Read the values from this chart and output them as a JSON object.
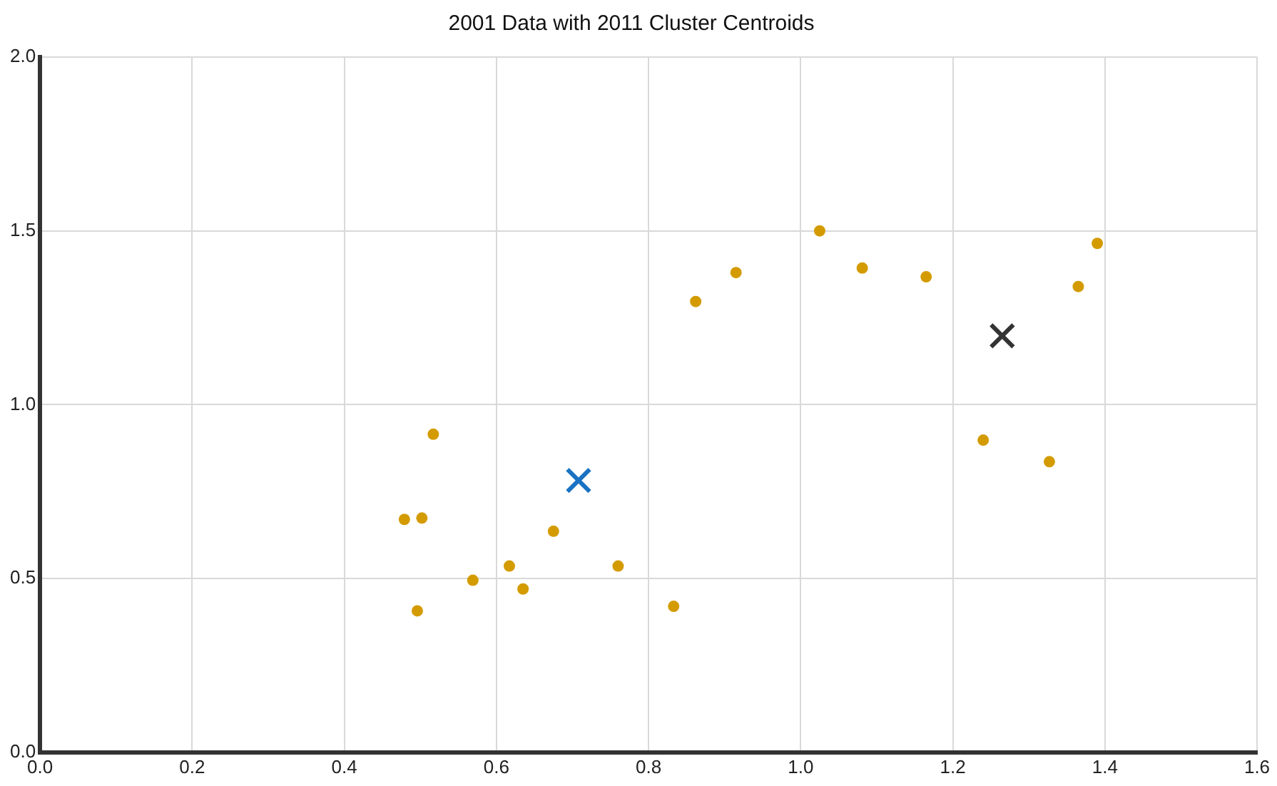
{
  "chart_data": {
    "type": "scatter",
    "title": "2001 Data with 2011 Cluster Centroids",
    "series": [
      {
        "color": "#d49b00",
        "marker": "circle",
        "x": [
          0.479,
          0.502,
          0.517,
          0.496,
          0.569,
          0.617,
          0.635,
          0.675,
          0.76,
          0.833,
          0.862,
          0.915,
          1.025,
          1.081,
          1.165,
          1.24,
          1.327,
          1.365,
          1.39
        ],
        "values": [
          0.67,
          0.674,
          0.915,
          0.407,
          0.495,
          0.536,
          0.47,
          0.636,
          0.536,
          0.42,
          1.297,
          1.38,
          1.5,
          1.393,
          1.368,
          0.898,
          0.836,
          1.34,
          1.464
        ]
      },
      {
        "color": "#1a73c2",
        "marker": "cross",
        "x": [
          0.708
        ],
        "values": [
          0.782
        ]
      },
      {
        "color": "#333333",
        "marker": "cross",
        "x": [
          1.265
        ],
        "values": [
          1.198
        ]
      }
    ],
    "xlim": [
      0,
      1.6
    ],
    "xticks": [
      {
        "value": 0,
        "label": "0.0"
      },
      {
        "value": 0.2,
        "label": "0.2"
      },
      {
        "value": 0.4,
        "label": "0.4"
      },
      {
        "value": 0.6,
        "label": "0.6"
      },
      {
        "value": 0.8,
        "label": "0.8"
      },
      {
        "value": 1,
        "label": "1.0"
      },
      {
        "value": 1.2,
        "label": "1.2"
      },
      {
        "value": 1.4,
        "label": "1.4"
      },
      {
        "value": 1.6,
        "label": "1.6"
      }
    ],
    "ylim": [
      0,
      2
    ],
    "yticks": [
      {
        "value": 0,
        "label": "0.0"
      },
      {
        "value": 0.5,
        "label": "0.5"
      },
      {
        "value": 1,
        "label": "1.0"
      },
      {
        "value": 1.5,
        "label": "1.5"
      },
      {
        "value": 2,
        "label": "2.0"
      }
    ],
    "grid": true,
    "legend": false
  }
}
